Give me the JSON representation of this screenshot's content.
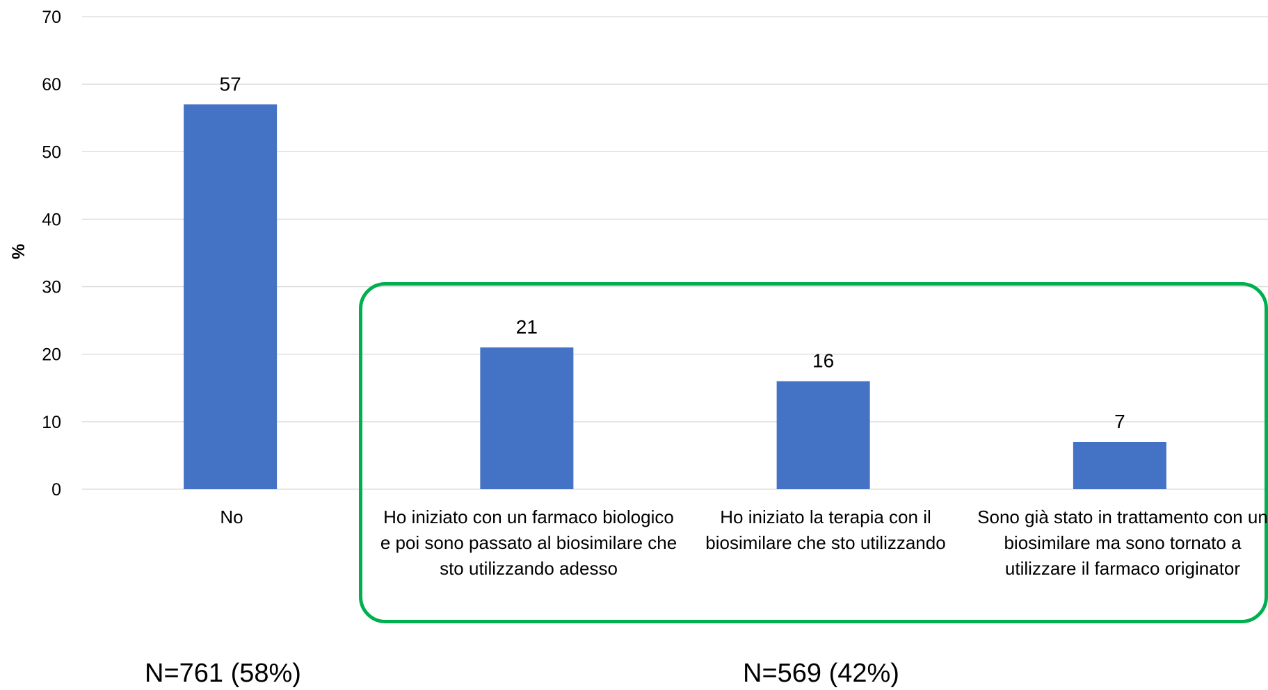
{
  "chart_data": {
    "type": "bar",
    "ylabel": "%",
    "ylim": [
      0,
      70
    ],
    "yticks": [
      0,
      10,
      20,
      30,
      40,
      50,
      60,
      70
    ],
    "grid": true,
    "categories": [
      "No",
      "Ho iniziato con un farmaco biologico e poi sono passato al biosimilare che sto utilizzando adesso",
      "Ho iniziato la terapia con il biosimilare che sto utilizzando",
      "Sono già stato in trattamento con un biosimilare ma sono tornato a utilizzare il farmaco originator"
    ],
    "values": [
      57,
      21,
      16,
      7
    ],
    "data_labels": [
      "57",
      "21",
      "16",
      "7"
    ],
    "bar_color": "#4472c4",
    "highlight_color": "#00b050"
  },
  "groups": [
    {
      "label": "N=761 (58%)"
    },
    {
      "label": "N=569 (42%)"
    }
  ]
}
